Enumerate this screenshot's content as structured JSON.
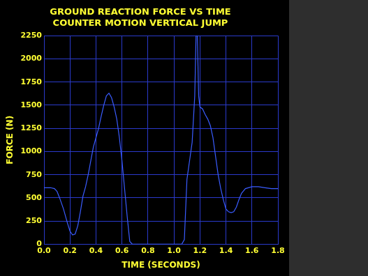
{
  "chart_data": {
    "type": "line",
    "title": [
      "GROUND REACTION FORCE VS TIME",
      "COUNTER MOTION VERTICAL JUMP"
    ],
    "x_label": "TIME (SECONDS)",
    "y_label": "FORCE (N)",
    "x": [
      0,
      0.05,
      0.08,
      0.1,
      0.12,
      0.15,
      0.18,
      0.2,
      0.22,
      0.24,
      0.26,
      0.28,
      0.3,
      0.32,
      0.34,
      0.36,
      0.38,
      0.4,
      0.42,
      0.44,
      0.46,
      0.48,
      0.5,
      0.52,
      0.54,
      0.56,
      0.58,
      0.6,
      0.62,
      0.64,
      0.66,
      0.68,
      0.8,
      0.9,
      1.0,
      1.06,
      1.08,
      1.1,
      1.12,
      1.14,
      1.16,
      1.17,
      1.18,
      1.19,
      1.2,
      1.22,
      1.24,
      1.26,
      1.28,
      1.3,
      1.32,
      1.34,
      1.36,
      1.38,
      1.4,
      1.42,
      1.44,
      1.46,
      1.48,
      1.5,
      1.52,
      1.55,
      1.6,
      1.65,
      1.7,
      1.75,
      1.8
    ],
    "values": [
      610,
      610,
      600,
      570,
      500,
      380,
      230,
      140,
      100,
      110,
      200,
      350,
      520,
      620,
      750,
      900,
      1050,
      1150,
      1250,
      1380,
      1500,
      1600,
      1630,
      1580,
      1480,
      1350,
      1150,
      900,
      600,
      300,
      30,
      0,
      0,
      0,
      0,
      0,
      50,
      700,
      900,
      1100,
      1600,
      2250,
      2250,
      1600,
      1480,
      1460,
      1400,
      1350,
      1280,
      1150,
      950,
      750,
      600,
      480,
      380,
      350,
      340,
      350,
      400,
      480,
      550,
      600,
      620,
      620,
      610,
      600,
      600
    ],
    "color": "#3a5cff",
    "xlim": [
      0,
      1.8
    ],
    "xticks": [
      {
        "value": 0,
        "label": "0.0"
      },
      {
        "value": 0.2,
        "label": "0.2"
      },
      {
        "value": 0.4,
        "label": "0.4"
      },
      {
        "value": 0.6,
        "label": "0.6"
      },
      {
        "value": 0.8,
        "label": "0.8"
      },
      {
        "value": 1.0,
        "label": "1.0"
      },
      {
        "value": 1.2,
        "label": "1.2"
      },
      {
        "value": 1.4,
        "label": "1.4"
      },
      {
        "value": 1.6,
        "label": "1.6"
      },
      {
        "value": 1.8,
        "label": "1.8"
      }
    ],
    "ylim": [
      0,
      2250
    ],
    "yticks": [
      0,
      250,
      500,
      750,
      1000,
      1250,
      1500,
      1750,
      2000,
      2250
    ],
    "grid": true
  }
}
